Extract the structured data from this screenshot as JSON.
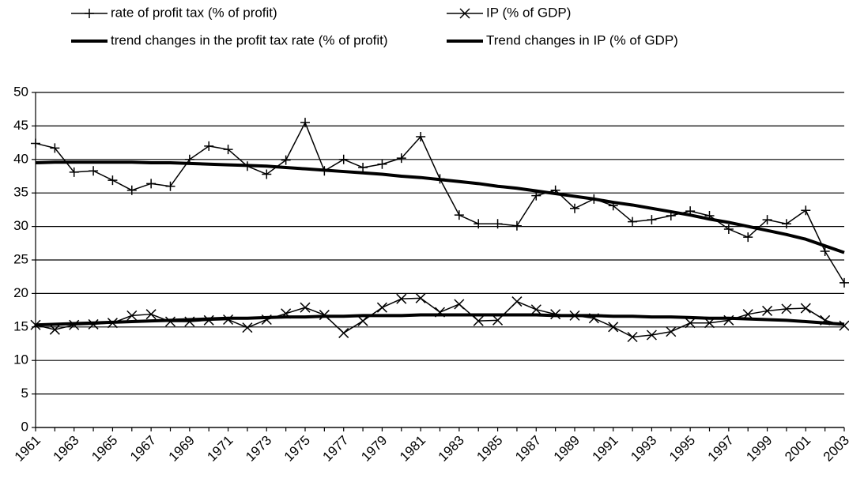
{
  "chart_data": {
    "type": "line",
    "categories": [
      "1961",
      null,
      "1963",
      null,
      "1965",
      null,
      "1967",
      null,
      "1969",
      null,
      "1971",
      null,
      "1973",
      null,
      "1975",
      null,
      "1977",
      null,
      "1979",
      null,
      "1981",
      null,
      "1983",
      null,
      "1985",
      null,
      "1987",
      null,
      "1989",
      null,
      "1991",
      null,
      "1993",
      null,
      "1995",
      null,
      "1997",
      null,
      "1999",
      null,
      "2001",
      null,
      "2003"
    ],
    "series": [
      {
        "name": "rate of profit tax (% of profit)",
        "color": "#000000",
        "marker": "plus",
        "width": 1.5,
        "values": [
          42.4,
          41.7,
          38.1,
          38.3,
          36.9,
          35.4,
          36.4,
          36.0,
          40.0,
          42.0,
          41.5,
          39.0,
          37.8,
          39.9,
          45.5,
          38.3,
          40.0,
          38.8,
          39.3,
          40.2,
          43.4,
          37.1,
          31.7,
          30.4,
          30.4,
          30.1,
          34.6,
          35.4,
          32.7,
          34.1,
          33.1,
          30.7,
          31.0,
          31.6,
          32.3,
          31.6,
          29.6,
          28.4,
          31.0,
          30.4,
          32.4,
          26.3,
          21.6
        ]
      },
      {
        "name": "IP (% of GDP)",
        "color": "#000000",
        "marker": "x",
        "width": 1.5,
        "values": [
          15.3,
          14.6,
          15.3,
          15.4,
          15.6,
          16.7,
          16.9,
          15.8,
          15.8,
          16.0,
          16.1,
          14.9,
          16.1,
          17.0,
          17.9,
          16.8,
          14.1,
          15.9,
          17.9,
          19.2,
          19.3,
          17.2,
          18.4,
          15.9,
          16.0,
          18.8,
          17.6,
          16.9,
          16.7,
          16.3,
          15.0,
          13.5,
          13.8,
          14.3,
          15.6,
          15.6,
          16.0,
          16.9,
          17.4,
          17.7,
          17.8,
          16.0,
          15.2
        ]
      },
      {
        "name": "trend changes in the profit tax rate (% of profit)",
        "color": "#000000",
        "marker": null,
        "width": 4,
        "values": [
          39.5,
          39.6,
          39.6,
          39.6,
          39.6,
          39.6,
          39.5,
          39.5,
          39.4,
          39.3,
          39.2,
          39.1,
          39.0,
          38.8,
          38.6,
          38.4,
          38.2,
          38.0,
          37.8,
          37.5,
          37.3,
          37.0,
          36.7,
          36.4,
          36.0,
          35.7,
          35.3,
          34.9,
          34.5,
          34.1,
          33.6,
          33.2,
          32.7,
          32.2,
          31.7,
          31.1,
          30.6,
          30.0,
          29.4,
          28.8,
          28.1,
          27.1,
          26.1
        ]
      },
      {
        "name": "Trend changes in IP (% of GDP)",
        "color": "#000000",
        "marker": null,
        "width": 4,
        "values": [
          15.3,
          15.4,
          15.5,
          15.6,
          15.7,
          15.8,
          15.9,
          16.0,
          16.1,
          16.2,
          16.3,
          16.3,
          16.4,
          16.5,
          16.5,
          16.6,
          16.6,
          16.7,
          16.7,
          16.7,
          16.8,
          16.8,
          16.8,
          16.8,
          16.8,
          16.8,
          16.8,
          16.7,
          16.7,
          16.7,
          16.6,
          16.6,
          16.5,
          16.5,
          16.4,
          16.3,
          16.3,
          16.2,
          16.1,
          16.0,
          15.8,
          15.6,
          15.4
        ]
      }
    ],
    "ylim": [
      0,
      50
    ],
    "yticks": [
      0,
      5,
      10,
      15,
      20,
      25,
      30,
      35,
      40,
      45,
      50
    ],
    "grid": true
  }
}
